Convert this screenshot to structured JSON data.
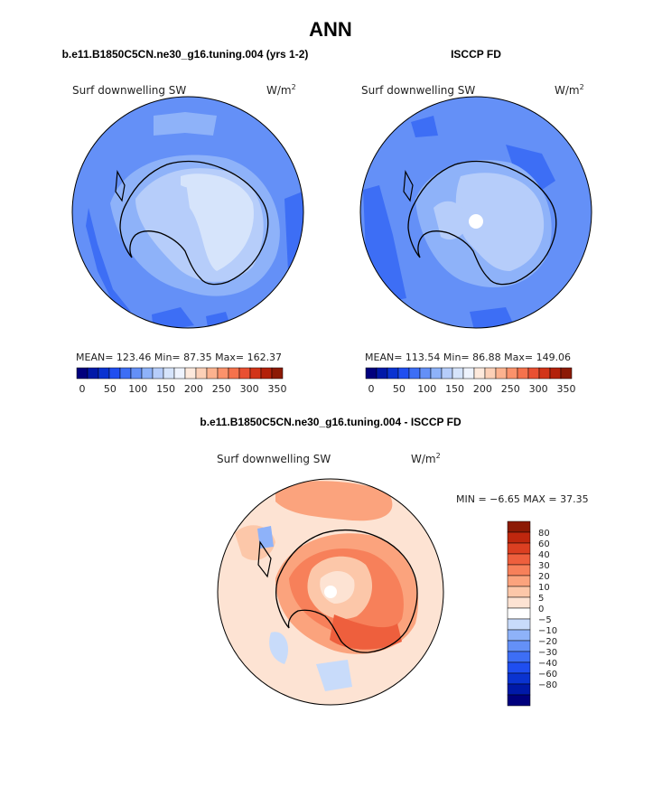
{
  "page_title": "ANN",
  "colors": {
    "blue_scale": [
      "#00007d",
      "#0019a8",
      "#0a33d1",
      "#1f4ef0",
      "#3d6ef5",
      "#6490f7",
      "#8eb2f9",
      "#b6cdfa",
      "#d6e4fb",
      "#eef3fd"
    ],
    "red_scale": [
      "#fde9dc",
      "#fcd0b7",
      "#fcb28f",
      "#fb926b",
      "#f5724c",
      "#e95032",
      "#d23418",
      "#b3210a",
      "#8c1a05"
    ],
    "diff_colors": [
      "#00007d",
      "#0019a8",
      "#0a33d1",
      "#1f4ef0",
      "#3d6ef5",
      "#6490f7",
      "#8eb2f9",
      "#c8dbfa",
      "#ffffff",
      "#fde3d3",
      "#fcc7a9",
      "#fba37d",
      "#f7805a",
      "#ee5f3d",
      "#dc3f21",
      "#bf270e",
      "#8c1a05"
    ]
  },
  "chart_data": [
    {
      "type": "heatmap",
      "panel": "top-left",
      "title": "b.e11.B1850C5CN.ne30_g16.tuning.004 (yrs 1-2)",
      "variable": "Surf downwelling SW",
      "units_label": "W/m",
      "units_exp": "2",
      "stats": {
        "mean": 123.46,
        "min": 87.35,
        "max": 162.37
      },
      "stats_text": "MEAN= 123.46    Min=   87.35    Max= 162.37",
      "colorbar": {
        "ticks": [
          "0",
          "50",
          "100",
          "150",
          "200",
          "250",
          "300",
          "350"
        ]
      }
    },
    {
      "type": "heatmap",
      "panel": "top-right",
      "title": "ISCCP FD",
      "variable": "Surf downwelling SW",
      "units_label": "W/m",
      "units_exp": "2",
      "stats": {
        "mean": 113.54,
        "min": 86.88,
        "max": 149.06
      },
      "stats_text": "MEAN= 113.54    Min=   86.88    Max= 149.06",
      "colorbar": {
        "ticks": [
          "0",
          "50",
          "100",
          "150",
          "200",
          "250",
          "300",
          "350"
        ]
      }
    },
    {
      "type": "heatmap",
      "panel": "bottom",
      "title": "b.e11.B1850C5CN.ne30_g16.tuning.004 - ISCCP FD",
      "variable": "Surf downwelling SW",
      "units_label": "W/m",
      "units_exp": "2",
      "stats": {
        "min": -6.65,
        "max": 37.35
      },
      "stats_text": "MIN =   −6.65  MAX =   37.35",
      "colorbar": {
        "labels": [
          "80",
          "60",
          "40",
          "30",
          "20",
          "10",
          "5",
          "0",
          "−5",
          "−10",
          "−20",
          "−30",
          "−40",
          "−60",
          "−80"
        ]
      }
    }
  ]
}
